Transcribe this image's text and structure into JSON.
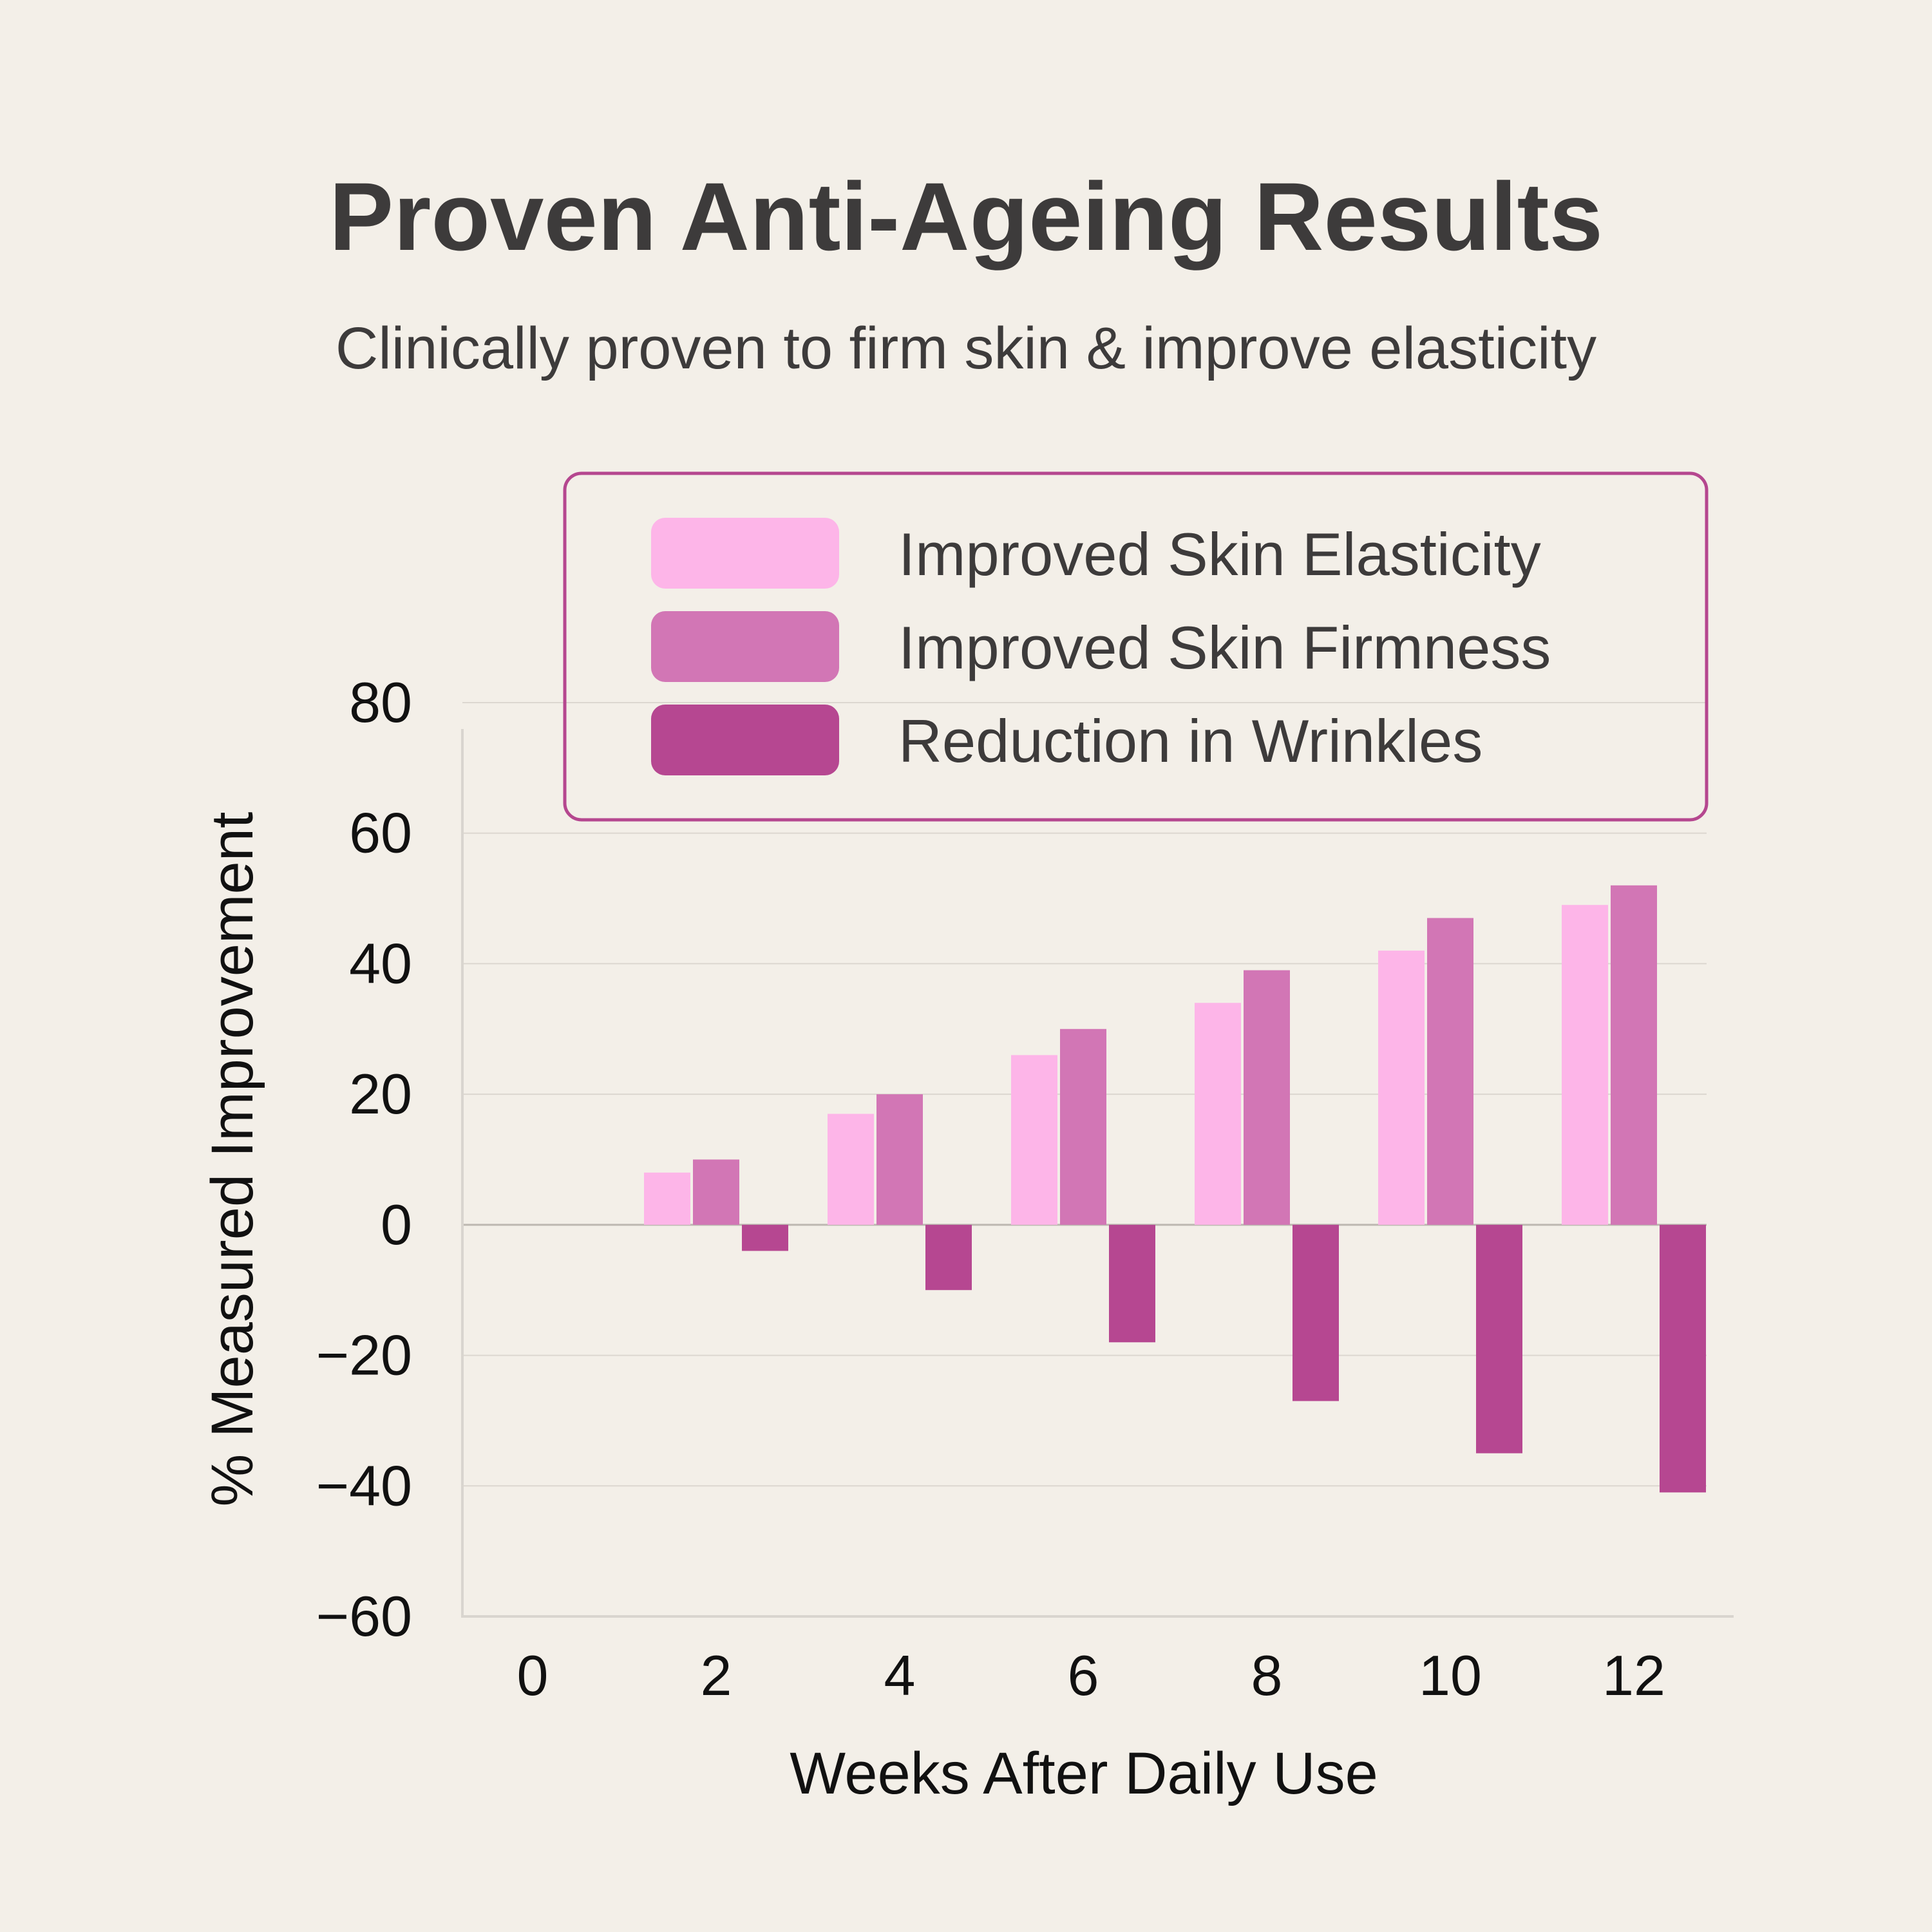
{
  "chart_data": {
    "type": "bar",
    "title": "Proven Anti-Ageing Results",
    "subtitle": "Clinically proven to firm skin & improve elasticity",
    "xlabel": "Weeks After Daily Use",
    "ylabel": "% Measured Improvement",
    "categories": [
      "0",
      "2",
      "4",
      "6",
      "8",
      "10",
      "12"
    ],
    "yticks": [
      "80",
      "60",
      "40",
      "20",
      "0",
      "-20",
      "-40",
      "-60"
    ],
    "ylim": [
      -60,
      80
    ],
    "grid": true,
    "legend_position": "top-right",
    "series": [
      {
        "name": "Improved Skin Elasticity",
        "color": "#fdb5e8",
        "values": [
          0,
          8,
          17,
          26,
          34,
          42,
          49
        ]
      },
      {
        "name": "Improved Skin Firmness",
        "color": "#d276b5",
        "values": [
          0,
          10,
          20,
          30,
          39,
          47,
          52
        ]
      },
      {
        "name": "Reduction in Wrinkles",
        "color": "#b64791",
        "values": [
          0,
          -4,
          -10,
          -18,
          -27,
          -35,
          -41
        ]
      }
    ],
    "legend_border_color": "#b5478f",
    "background": "#f3efe8"
  }
}
